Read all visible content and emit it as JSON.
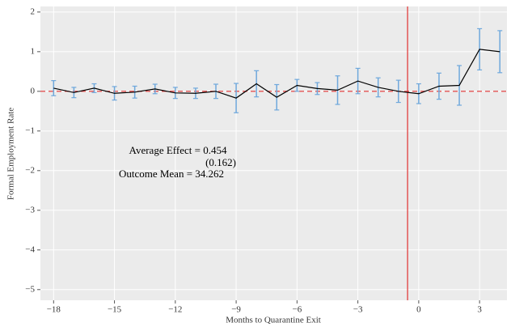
{
  "chart_data": {
    "type": "errorline",
    "xlabel": "Months to Quarantine Exit",
    "ylabel": "Formal Employment Rate",
    "x": [
      -18,
      -17,
      -16,
      -15,
      -14,
      -13,
      -12,
      -11,
      -10,
      -9,
      -8,
      -7,
      -6,
      -5,
      -4,
      -3,
      -2,
      -1,
      0,
      1,
      2,
      3,
      4
    ],
    "values": [
      0.08,
      -0.03,
      0.08,
      -0.05,
      -0.02,
      0.06,
      -0.04,
      -0.05,
      0.0,
      -0.17,
      0.19,
      -0.15,
      0.15,
      0.07,
      0.03,
      0.26,
      0.1,
      0.0,
      -0.06,
      0.13,
      0.15,
      1.06,
      1.0
    ],
    "errors": [
      0.19,
      0.13,
      0.11,
      0.17,
      0.15,
      0.12,
      0.14,
      0.13,
      0.18,
      0.37,
      0.33,
      0.32,
      0.15,
      0.15,
      0.36,
      0.32,
      0.24,
      0.28,
      0.25,
      0.33,
      0.5,
      0.52,
      0.53
    ],
    "color": "#000000",
    "error_color": "#6fa8dc",
    "xlim": [
      -18.65,
      4.35
    ],
    "ylim": [
      -5.27,
      2.14
    ],
    "xticks": [
      {
        "value": -18,
        "label": "−18"
      },
      {
        "value": -15,
        "label": "−15"
      },
      {
        "value": -12,
        "label": "−12"
      },
      {
        "value": -9,
        "label": "−9"
      },
      {
        "value": -6,
        "label": "−6"
      },
      {
        "value": -3,
        "label": "−3"
      },
      0,
      3
    ],
    "yticks": [
      2,
      1,
      0,
      {
        "value": -1,
        "label": "−1"
      },
      {
        "value": -2,
        "label": "−2"
      },
      {
        "value": -3,
        "label": "−3"
      },
      {
        "value": -4,
        "label": "−4"
      },
      {
        "value": -5,
        "label": "−5"
      }
    ],
    "grid": true,
    "hline": 0,
    "vline": -0.55,
    "reference_color": "#e03030",
    "annotations": [
      "Average Effect = 0.454",
      "(0.162)",
      "Outcome Mean = 34.262"
    ]
  }
}
